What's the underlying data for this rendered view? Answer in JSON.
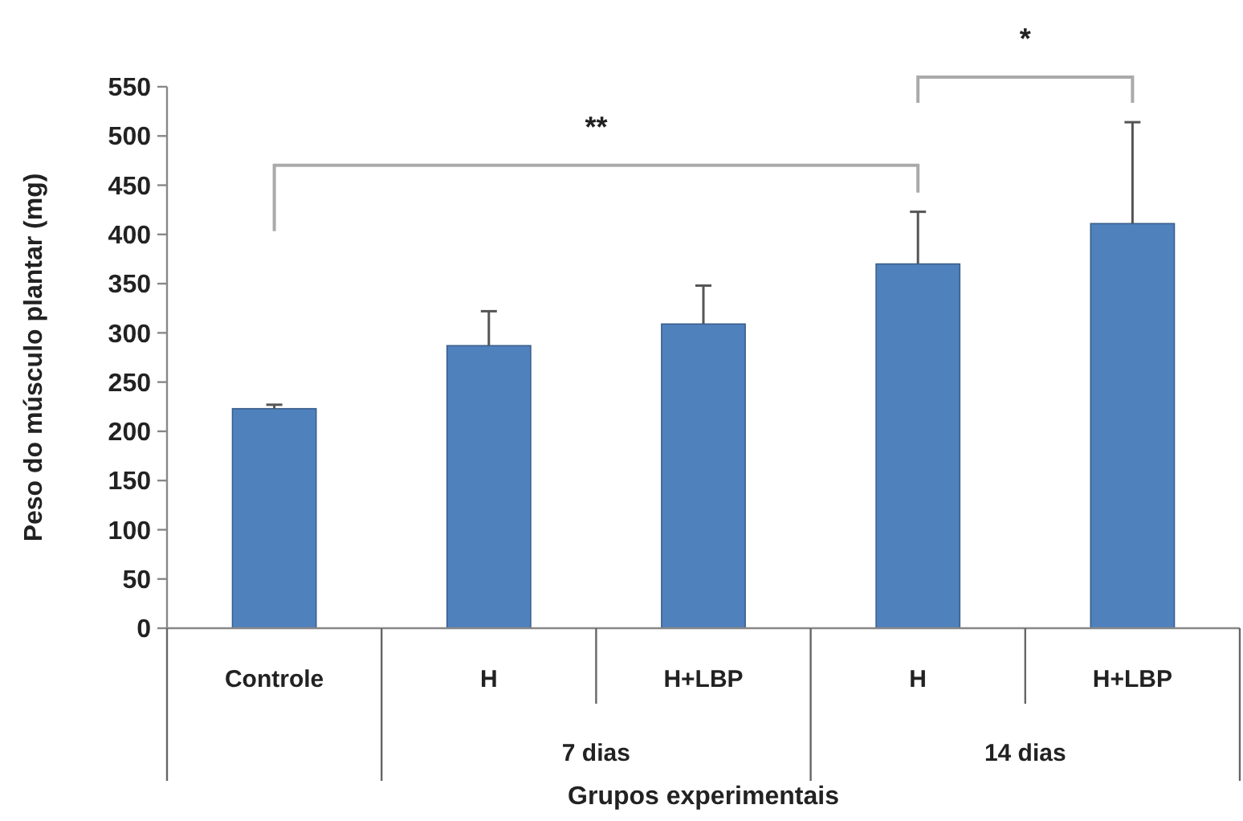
{
  "chart_data": {
    "type": "bar",
    "xlabel": "Grupos experimentais",
    "ylabel": "Peso do músculo plantar (mg)",
    "categories": [
      "Controle",
      "H",
      "H+LBP",
      "H",
      "H+LBP"
    ],
    "values": [
      223,
      287,
      309,
      370,
      411
    ],
    "errors": [
      4,
      35,
      39,
      53,
      103
    ],
    "color": "#4f81bd",
    "ylim": [
      0,
      550
    ],
    "yticks": [
      0,
      50,
      100,
      150,
      200,
      250,
      300,
      350,
      400,
      450,
      500,
      550
    ],
    "grid": false,
    "annotations": [
      "7 dias",
      "14 dias",
      "**",
      "*"
    ]
  }
}
